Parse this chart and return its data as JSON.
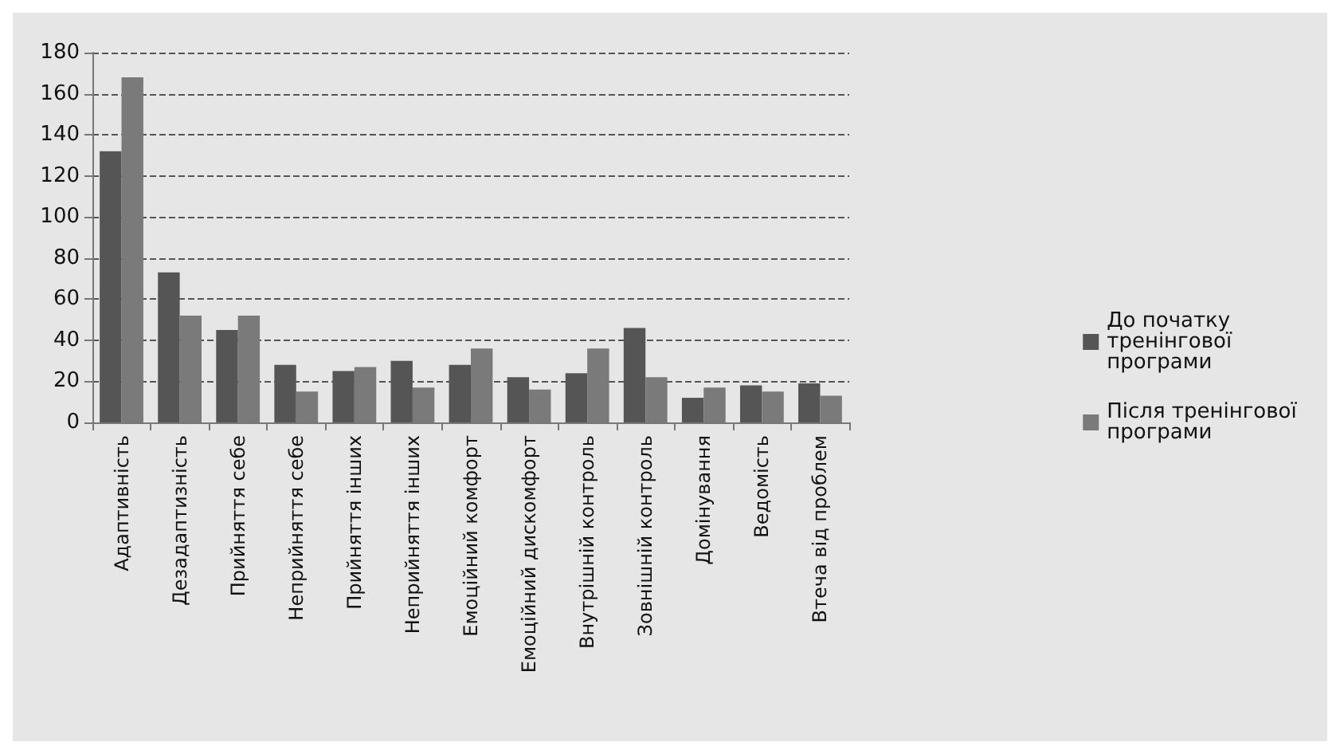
{
  "chart_data": {
    "type": "bar",
    "categories": [
      "Адаптивність",
      "Дезадаптизність",
      "Прийняття себе",
      "Неприйняття себе",
      "Прийняття інших",
      "Неприйняття інших",
      "Емоційний комфорт",
      "Емоційний дискомфорт",
      "Внутрішній контроль",
      "Зовнішній контроль",
      "Домінування",
      "Ведомість",
      "Втеча від проблем"
    ],
    "series": [
      {
        "name": "До початку тренінгової програми",
        "color": "#555555",
        "values": [
          132,
          73,
          45,
          28,
          25,
          30,
          28,
          22,
          24,
          46,
          12,
          18,
          19
        ]
      },
      {
        "name": "Після тренінгової програми",
        "color": "#7a7a7a",
        "values": [
          168,
          52,
          52,
          15,
          27,
          17,
          36,
          16,
          36,
          22,
          17,
          15,
          13
        ]
      }
    ],
    "ylim": [
      0,
      180
    ],
    "yticks": [
      0,
      20,
      40,
      60,
      80,
      100,
      120,
      140,
      160,
      180
    ],
    "grid": "y",
    "legend": "right"
  }
}
